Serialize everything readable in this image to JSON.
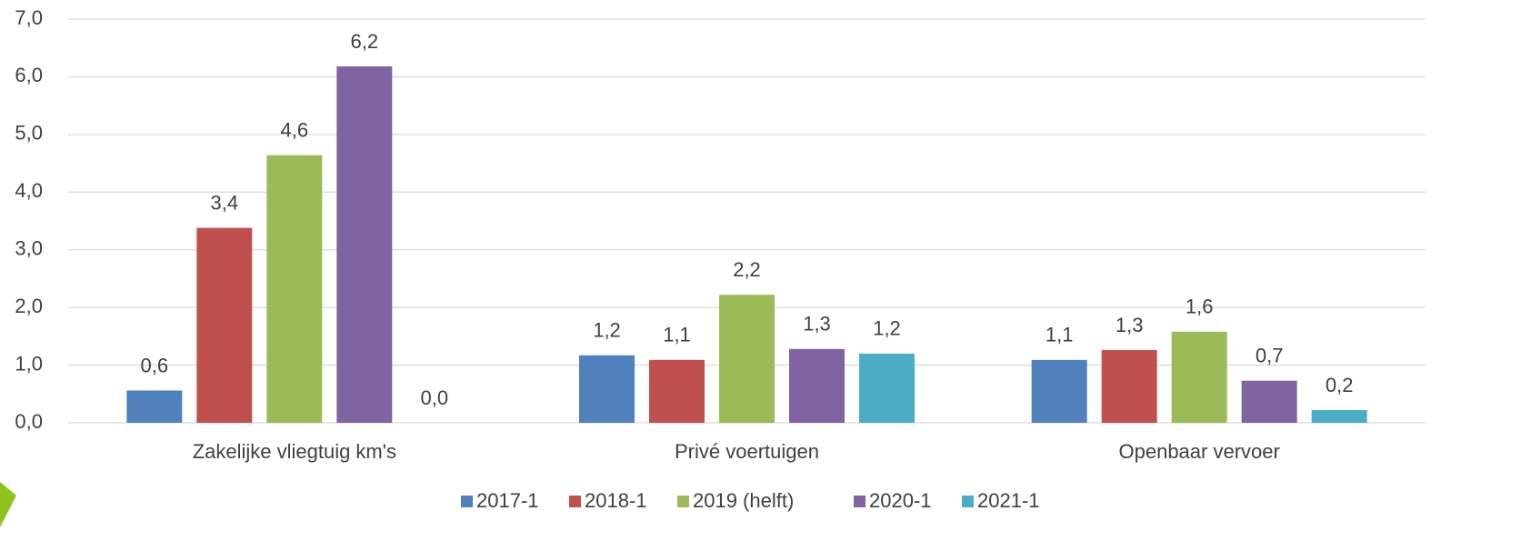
{
  "chart_data": {
    "type": "bar",
    "categories": [
      "Zakelijke vliegtuig km's",
      "Privé voertuigen",
      "Openbaar vervoer"
    ],
    "series": [
      {
        "name": "2017-1",
        "color": "#4f81bd",
        "values": [
          0.56,
          1.17,
          1.09
        ],
        "value_labels": [
          "0,6",
          "1,2",
          "1,1"
        ]
      },
      {
        "name": "2018-1",
        "color": "#c0504d",
        "values": [
          3.38,
          1.09,
          1.26
        ],
        "value_labels": [
          "3,4",
          "1,1",
          "1,3"
        ]
      },
      {
        "name": "2019 (helft)",
        "color": "#9bbb59",
        "values": [
          4.64,
          2.22,
          1.58
        ],
        "value_labels": [
          "4,6",
          "2,2",
          "1,6"
        ]
      },
      {
        "name": "2020-1",
        "color": "#8064a2",
        "values": [
          6.18,
          1.28,
          0.73
        ],
        "value_labels": [
          "6,2",
          "1,3",
          "0,7"
        ]
      },
      {
        "name": "2021-1",
        "color": "#4bacc6",
        "values": [
          0,
          1.2,
          0.22
        ],
        "value_labels": [
          "0,0",
          "1,2",
          "0,2"
        ]
      }
    ],
    "ylim": [
      0,
      7
    ],
    "yticks": [
      {
        "value": 0,
        "label": "0,0"
      },
      {
        "value": 1,
        "label": "1,0"
      },
      {
        "value": 2,
        "label": "2,0"
      },
      {
        "value": 3,
        "label": "3,0"
      },
      {
        "value": 4,
        "label": "4,0"
      },
      {
        "value": 5,
        "label": "5,0"
      },
      {
        "value": 6,
        "label": "6,0"
      },
      {
        "value": 7,
        "label": "7,0"
      }
    ],
    "grid": true,
    "legend": "bottom"
  }
}
